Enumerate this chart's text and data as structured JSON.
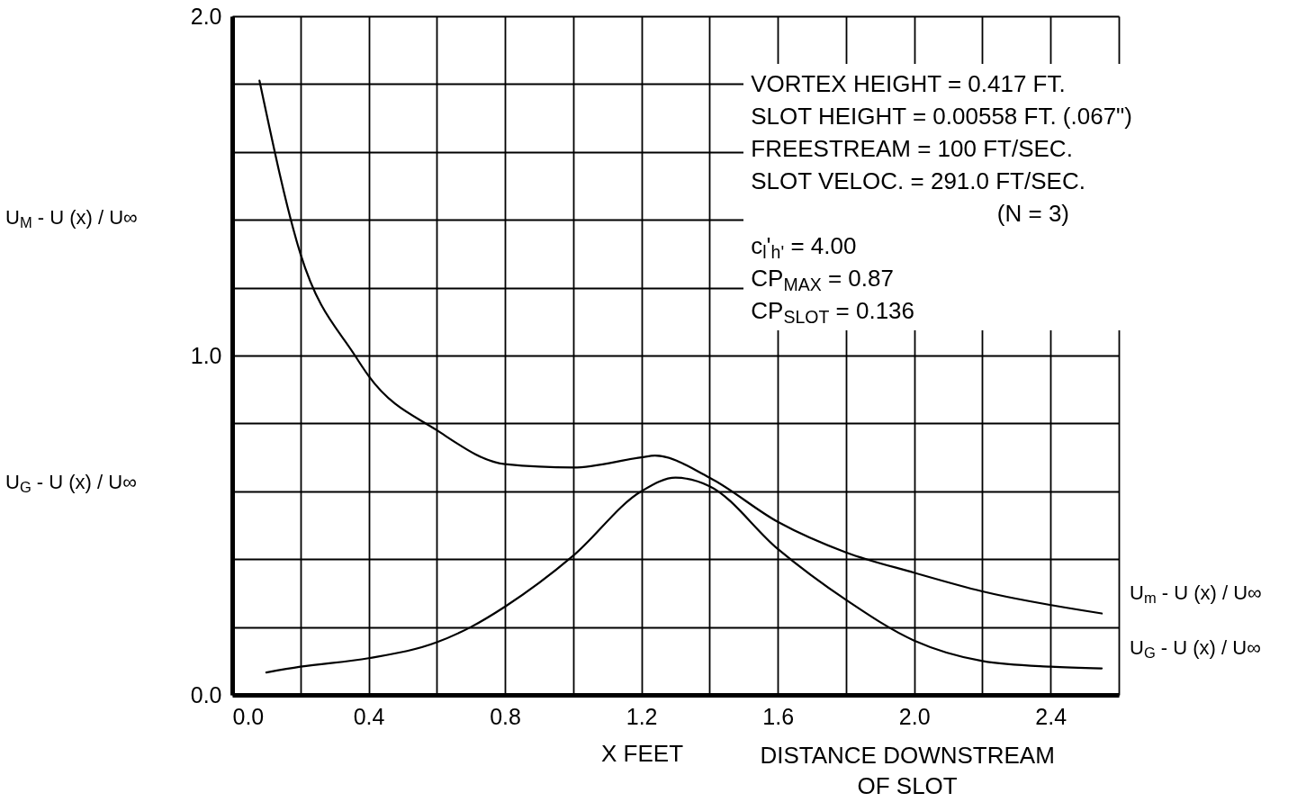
{
  "chart_data": {
    "type": "line",
    "xlabel": "X FEET",
    "ylabel": "U$_{M}$ - U (x) / U∞",
    "xlim": [
      0,
      2.6
    ],
    "ylim": [
      0,
      2.0
    ],
    "xticks": [
      {
        "value": 0,
        "label": "0.0"
      },
      {
        "value": 0.2,
        "label": null
      },
      {
        "value": 0.4,
        "label": "0.4"
      },
      {
        "value": 0.6,
        "label": null
      },
      {
        "value": 0.8,
        "label": "0.8"
      },
      {
        "value": 1.0,
        "label": null
      },
      {
        "value": 1.2,
        "label": "1.2"
      },
      {
        "value": 1.4,
        "label": null
      },
      {
        "value": 1.6,
        "label": "1.6"
      },
      {
        "value": 1.8,
        "label": null
      },
      {
        "value": 2.0,
        "label": "2.0"
      },
      {
        "value": 2.2,
        "label": null
      },
      {
        "value": 2.4,
        "label": "2.4"
      },
      {
        "value": 2.6,
        "label": null
      }
    ],
    "yticks": [
      {
        "value": 0,
        "label": "0.0"
      },
      {
        "value": 0.2,
        "label": null
      },
      {
        "value": 0.4,
        "label": null
      },
      {
        "value": 0.6,
        "label": null
      },
      {
        "value": 0.8,
        "label": null
      },
      {
        "value": 1.0,
        "label": "1.0"
      },
      {
        "value": 1.2,
        "label": null
      },
      {
        "value": 1.4,
        "label": null
      },
      {
        "value": 1.6,
        "label": null
      },
      {
        "value": 1.8,
        "label": null
      },
      {
        "value": 2.0,
        "label": "2.0"
      }
    ],
    "grid": true,
    "series": [
      {
        "name": "U$_{m}$ - U (x) / U∞",
        "color": "#000000",
        "x": [
          0.08,
          0.2,
          0.36,
          0.4,
          0.6,
          0.8,
          1.0,
          1.2,
          1.24,
          1.4,
          1.6,
          1.8,
          2.0,
          2.2,
          2.55
        ],
        "values": [
          1.81,
          1.3,
          1.0,
          0.94,
          0.78,
          0.68,
          0.67,
          0.7,
          0.705,
          0.64,
          0.51,
          0.42,
          0.36,
          0.305,
          0.24
        ]
      },
      {
        "name": "U$_{G}$ - U (x) / U∞",
        "color": "#000000",
        "x": [
          0.1,
          0.2,
          0.4,
          0.6,
          0.7,
          0.8,
          1.0,
          1.2,
          1.3,
          1.4,
          1.6,
          1.8,
          2.0,
          2.2,
          2.4,
          2.55
        ],
        "values": [
          0.066,
          0.083,
          0.108,
          0.155,
          0.2,
          0.26,
          0.41,
          0.6,
          0.64,
          0.615,
          0.43,
          0.28,
          0.16,
          0.1,
          0.083,
          0.078
        ]
      }
    ],
    "annotations": [
      "VORTEX HEIGHT  =  0.417 FT.",
      "SLOT HEIGHT  =  0.00558 FT. (.067\")",
      "FREESTREAM  =  100 FT/SEC.",
      "SLOT VELOC.  =  291.0 FT/SEC.",
      "(N = 3)",
      "c$_{l}$'$_{h'}$  =  4.00",
      "CP$_{MAX}$  =  0.87",
      "CP$_{SLOT}$  =  0.136",
      "U$_{G}$ - U (x) / U∞",
      "DISTANCE DOWNSTREAM OF SLOT"
    ]
  }
}
